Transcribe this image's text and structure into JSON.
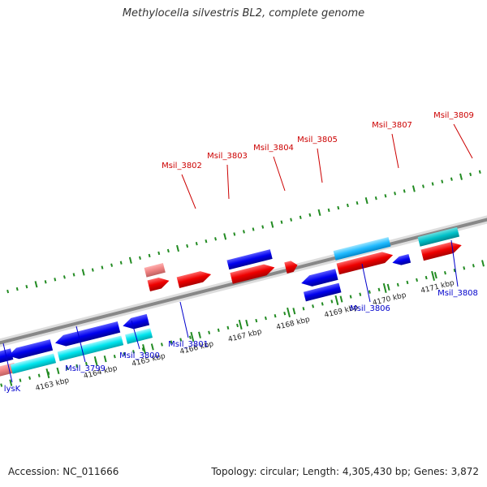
{
  "title": "Methylocella silvestris BL2, complete genome",
  "footer": {
    "accession": "Accession: NC_011666",
    "topology": "Topology: circular; Length: 4,305,430 bp; Genes: 3,872"
  },
  "colors": {
    "forward_gene": "#ff0000",
    "forward_cds_light": "#f08080",
    "reverse_gene": "#0000ee",
    "reverse_cds_light": "#00e5ee",
    "forward_label": "#cc0000",
    "reverse_label": "#0000cc",
    "tick": "#228b22",
    "backbone": "#888888"
  },
  "scale": {
    "tick_labels": [
      "4163 kbp",
      "4164 kbp",
      "4165 kbp",
      "4166 kbp",
      "4167 kbp",
      "4168 kbp",
      "4169 kbp",
      "4170 kbp",
      "4171 kbp"
    ]
  },
  "forward_genes": [
    {
      "label": "Msil_3802"
    },
    {
      "label": "Msil_3803"
    },
    {
      "label": "Msil_3804"
    },
    {
      "label": "Msil_3805"
    },
    {
      "label": "Msil_3807"
    },
    {
      "label": "Msil_3809"
    }
  ],
  "reverse_genes": [
    {
      "label": "lysK"
    },
    {
      "label": "Msil_3799"
    },
    {
      "label": "Msil_3800"
    },
    {
      "label": "Msil_3801"
    },
    {
      "label": "Msil_3806"
    },
    {
      "label": "Msil_3808"
    }
  ]
}
